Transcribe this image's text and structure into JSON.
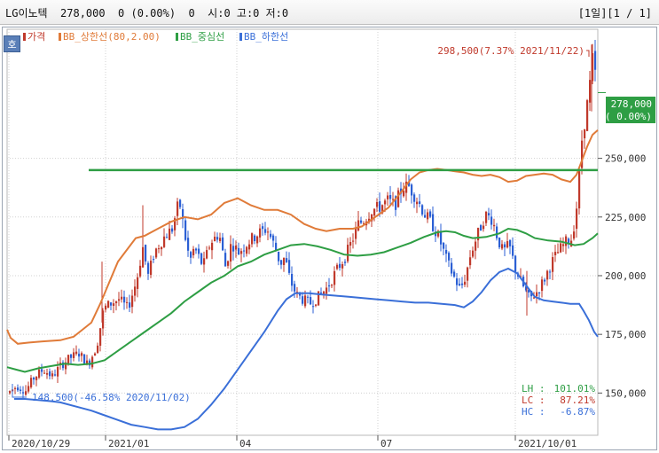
{
  "header": {
    "title": "LG이노텍  278,000  0 (0.00%)  0  시:0 고:0 저:0",
    "pager": "[1일][1 / 1]"
  },
  "ho_button": "호",
  "legend": [
    {
      "label": "가격",
      "color": "#c0392b"
    },
    {
      "label": "BB_상한선(80,2.00)",
      "color": "#e07b39"
    },
    {
      "label": "BB_중심선",
      "color": "#2e9e44"
    },
    {
      "label": "BB_하한선",
      "color": "#3a6fd8"
    }
  ],
  "annotations": {
    "high": "298,500(7.37% 2021/11/22)",
    "low": "148,500(-46.58% 2020/11/02)"
  },
  "current_price": {
    "value": "278,000",
    "change": "( 0.00%)"
  },
  "stats": [
    {
      "label": "LH :",
      "value": "101.01%",
      "color": "#2e9e44"
    },
    {
      "label": "LC :",
      "value": "87.21%",
      "color": "#c0392b"
    },
    {
      "label": "HC :",
      "value": "-6.87%",
      "color": "#3a6fd8"
    }
  ],
  "chart_data": {
    "type": "line",
    "xlabels": [
      "2020/10/29",
      "2021/01",
      "04",
      "07",
      "2021/10/01"
    ],
    "ylabels": [
      "150,000",
      "175,000",
      "200,000",
      "225,000",
      "250,000"
    ],
    "ylim": [
      132000,
      305000
    ],
    "horizontal_line": 245000,
    "colors": {
      "up": "#c0392b",
      "down": "#2b5fd4",
      "upper": "#e07b39",
      "middle": "#2e9e44",
      "lower": "#3a6fd8",
      "hline": "#2e9e44"
    },
    "series": [
      {
        "name": "BB_상한선(80,2.00)",
        "values": [
          [
            0,
            177000
          ],
          [
            4,
            173500
          ],
          [
            12,
            171000
          ],
          [
            25,
            171500
          ],
          [
            40,
            172000
          ],
          [
            60,
            172500
          ],
          [
            75,
            174000
          ],
          [
            85,
            177000
          ],
          [
            95,
            180000
          ],
          [
            105,
            188000
          ],
          [
            115,
            197000
          ],
          [
            125,
            206000
          ],
          [
            135,
            211000
          ],
          [
            145,
            216000
          ],
          [
            155,
            217000
          ],
          [
            170,
            220000
          ],
          [
            185,
            223000
          ],
          [
            200,
            225000
          ],
          [
            215,
            224000
          ],
          [
            230,
            226000
          ],
          [
            245,
            231000
          ],
          [
            260,
            233000
          ],
          [
            275,
            230000
          ],
          [
            290,
            228000
          ],
          [
            305,
            228000
          ],
          [
            320,
            226000
          ],
          [
            335,
            222000
          ],
          [
            348,
            220000
          ],
          [
            360,
            219000
          ],
          [
            375,
            220000
          ],
          [
            390,
            220000
          ],
          [
            400,
            221000
          ],
          [
            415,
            225000
          ],
          [
            430,
            229000
          ],
          [
            445,
            236000
          ],
          [
            455,
            241000
          ],
          [
            465,
            244000
          ],
          [
            475,
            245000
          ],
          [
            485,
            245500
          ],
          [
            495,
            245000
          ],
          [
            505,
            244500
          ],
          [
            515,
            244000
          ],
          [
            525,
            243000
          ],
          [
            535,
            242500
          ],
          [
            545,
            243000
          ],
          [
            555,
            242000
          ],
          [
            565,
            240000
          ],
          [
            575,
            240500
          ],
          [
            585,
            242500
          ],
          [
            595,
            243000
          ],
          [
            605,
            243500
          ],
          [
            615,
            243000
          ],
          [
            625,
            241000
          ],
          [
            635,
            240000
          ],
          [
            642,
            243000
          ],
          [
            648,
            249000
          ],
          [
            654,
            255000
          ],
          [
            660,
            260000
          ],
          [
            666,
            262000
          ]
        ]
      },
      {
        "name": "BB_중심선",
        "values": [
          [
            0,
            161000
          ],
          [
            10,
            160000
          ],
          [
            20,
            159000
          ],
          [
            35,
            160500
          ],
          [
            50,
            161500
          ],
          [
            65,
            162500
          ],
          [
            80,
            162000
          ],
          [
            95,
            162500
          ],
          [
            110,
            164000
          ],
          [
            125,
            168000
          ],
          [
            140,
            172000
          ],
          [
            155,
            176000
          ],
          [
            170,
            180000
          ],
          [
            185,
            184000
          ],
          [
            200,
            189000
          ],
          [
            215,
            193000
          ],
          [
            230,
            197000
          ],
          [
            245,
            200000
          ],
          [
            260,
            204000
          ],
          [
            275,
            206000
          ],
          [
            290,
            209000
          ],
          [
            305,
            211000
          ],
          [
            320,
            213000
          ],
          [
            335,
            213500
          ],
          [
            350,
            212500
          ],
          [
            365,
            211000
          ],
          [
            380,
            209000
          ],
          [
            395,
            208500
          ],
          [
            410,
            209000
          ],
          [
            425,
            210000
          ],
          [
            440,
            212000
          ],
          [
            455,
            214000
          ],
          [
            470,
            216500
          ],
          [
            485,
            218500
          ],
          [
            495,
            219000
          ],
          [
            505,
            218500
          ],
          [
            515,
            217000
          ],
          [
            525,
            216000
          ],
          [
            540,
            216500
          ],
          [
            555,
            218000
          ],
          [
            565,
            220000
          ],
          [
            575,
            219500
          ],
          [
            585,
            218000
          ],
          [
            595,
            216000
          ],
          [
            610,
            215000
          ],
          [
            625,
            214500
          ],
          [
            640,
            213000
          ],
          [
            650,
            213500
          ],
          [
            660,
            216000
          ],
          [
            666,
            218000
          ]
        ]
      },
      {
        "name": "BB_하한선",
        "values": [
          [
            8,
            147500
          ],
          [
            20,
            147500
          ],
          [
            35,
            147000
          ],
          [
            50,
            146500
          ],
          [
            60,
            146000
          ],
          [
            80,
            144000
          ],
          [
            95,
            142500
          ],
          [
            110,
            140500
          ],
          [
            125,
            138500
          ],
          [
            140,
            136500
          ],
          [
            155,
            135500
          ],
          [
            170,
            134500
          ],
          [
            185,
            134500
          ],
          [
            200,
            135500
          ],
          [
            215,
            139000
          ],
          [
            230,
            145000
          ],
          [
            245,
            152000
          ],
          [
            260,
            160000
          ],
          [
            275,
            168000
          ],
          [
            290,
            176000
          ],
          [
            305,
            185000
          ],
          [
            315,
            190000
          ],
          [
            325,
            192500
          ],
          [
            340,
            192500
          ],
          [
            355,
            192000
          ],
          [
            370,
            191500
          ],
          [
            385,
            191000
          ],
          [
            400,
            190500
          ],
          [
            415,
            190000
          ],
          [
            430,
            189500
          ],
          [
            445,
            189000
          ],
          [
            460,
            188500
          ],
          [
            475,
            188500
          ],
          [
            490,
            188000
          ],
          [
            505,
            187500
          ],
          [
            515,
            186500
          ],
          [
            525,
            189000
          ],
          [
            535,
            193000
          ],
          [
            545,
            198000
          ],
          [
            555,
            201500
          ],
          [
            565,
            203000
          ],
          [
            575,
            201000
          ],
          [
            585,
            196000
          ],
          [
            595,
            191000
          ],
          [
            605,
            189500
          ],
          [
            615,
            189000
          ],
          [
            625,
            188500
          ],
          [
            635,
            188000
          ],
          [
            645,
            188000
          ],
          [
            650,
            185000
          ],
          [
            656,
            181000
          ],
          [
            662,
            176000
          ],
          [
            666,
            174000
          ]
        ]
      }
    ]
  }
}
